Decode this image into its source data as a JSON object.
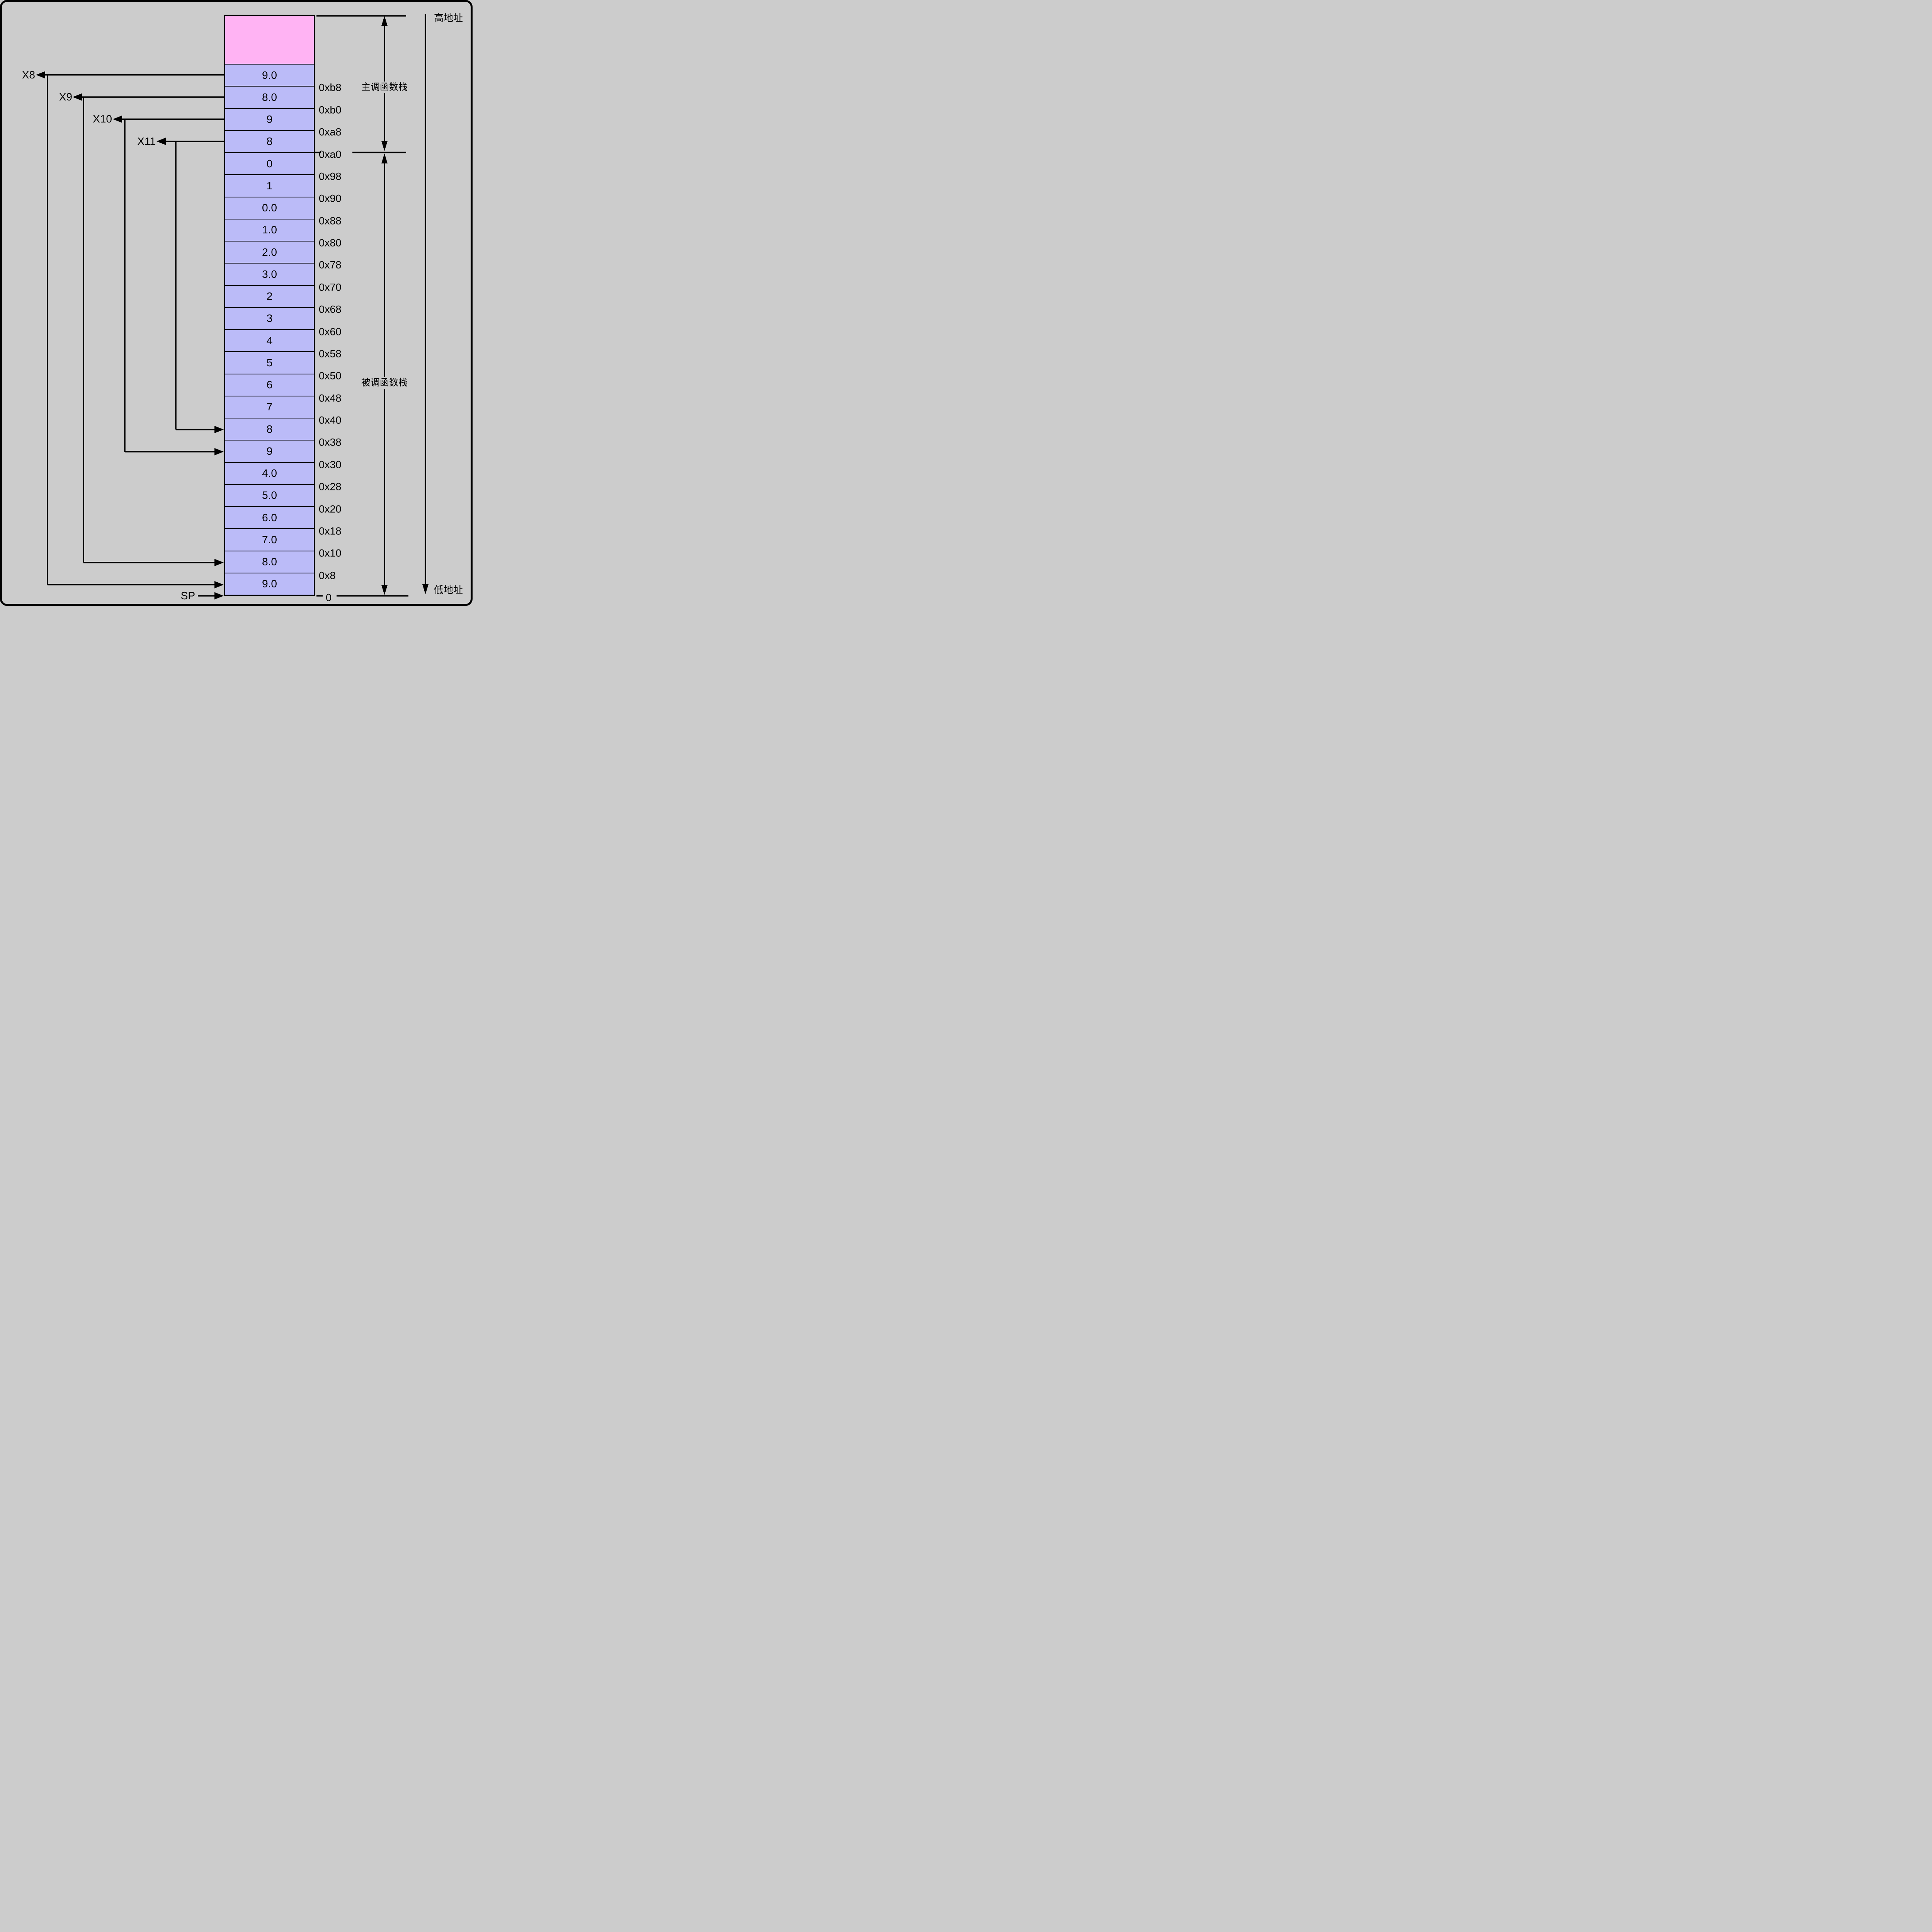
{
  "labels": {
    "high_address": "高地址",
    "low_address": "低地址",
    "caller_stack": "主调函数栈",
    "callee_stack": "被调函数栈",
    "sp": "SP"
  },
  "registers": [
    "X8",
    "X9",
    "X10",
    "X11"
  ],
  "stack": {
    "reserved_cell_value": "",
    "cells": [
      "9.0",
      "8.0",
      "9",
      "8",
      "0",
      "1",
      "0.0",
      "1.0",
      "2.0",
      "3.0",
      "2",
      "3",
      "4",
      "5",
      "6",
      "7",
      "8",
      "9",
      "4.0",
      "5.0",
      "6.0",
      "7.0",
      "8.0",
      "9.0"
    ],
    "addresses": [
      "0xb8",
      "0xb0",
      "0xa8",
      "0xa0",
      "0x98",
      "0x90",
      "0x88",
      "0x80",
      "0x78",
      "0x70",
      "0x68",
      "0x60",
      "0x58",
      "0x50",
      "0x48",
      "0x40",
      "0x38",
      "0x30",
      "0x28",
      "0x20",
      "0x18",
      "0x10",
      "0x8",
      "0"
    ]
  },
  "colors": {
    "background": "#cccccc",
    "cell_fill": "#bbbbf8",
    "reserved_fill": "#ffb3f3",
    "line": "#000000"
  }
}
